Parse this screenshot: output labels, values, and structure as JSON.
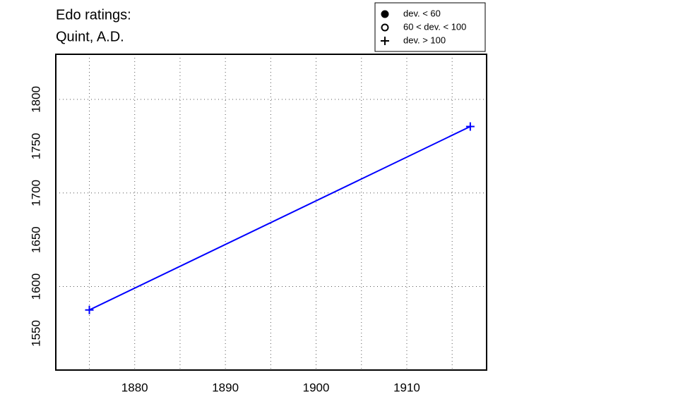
{
  "chart_data": {
    "type": "line",
    "title": "Edo ratings:",
    "subtitle": "Quint, A.D.",
    "x": [
      1875,
      1917
    ],
    "series": [
      {
        "color": "#0000ff",
        "values": [
          1575,
          1771
        ],
        "markers": [
          "plus",
          "plus"
        ]
      }
    ],
    "xlim": [
      1871.3,
      1918.8
    ],
    "ylim": [
      1510.8,
      1848.2
    ],
    "xticks": [
      1880,
      1890,
      1900,
      1910
    ],
    "yticks": [
      1550,
      1600,
      1650,
      1700,
      1750,
      1800
    ],
    "xgrid": [
      1875,
      1880,
      1885,
      1890,
      1895,
      1900,
      1905,
      1910,
      1915
    ],
    "ygrid": [
      1600,
      1700,
      1800
    ],
    "legend": [
      {
        "label": "dev. < 60",
        "marker": "filled-circle"
      },
      {
        "label": "60 < dev. < 100",
        "marker": "open-circle"
      },
      {
        "label": "dev. > 100",
        "marker": "plus"
      }
    ],
    "legend_position": "top-right"
  }
}
